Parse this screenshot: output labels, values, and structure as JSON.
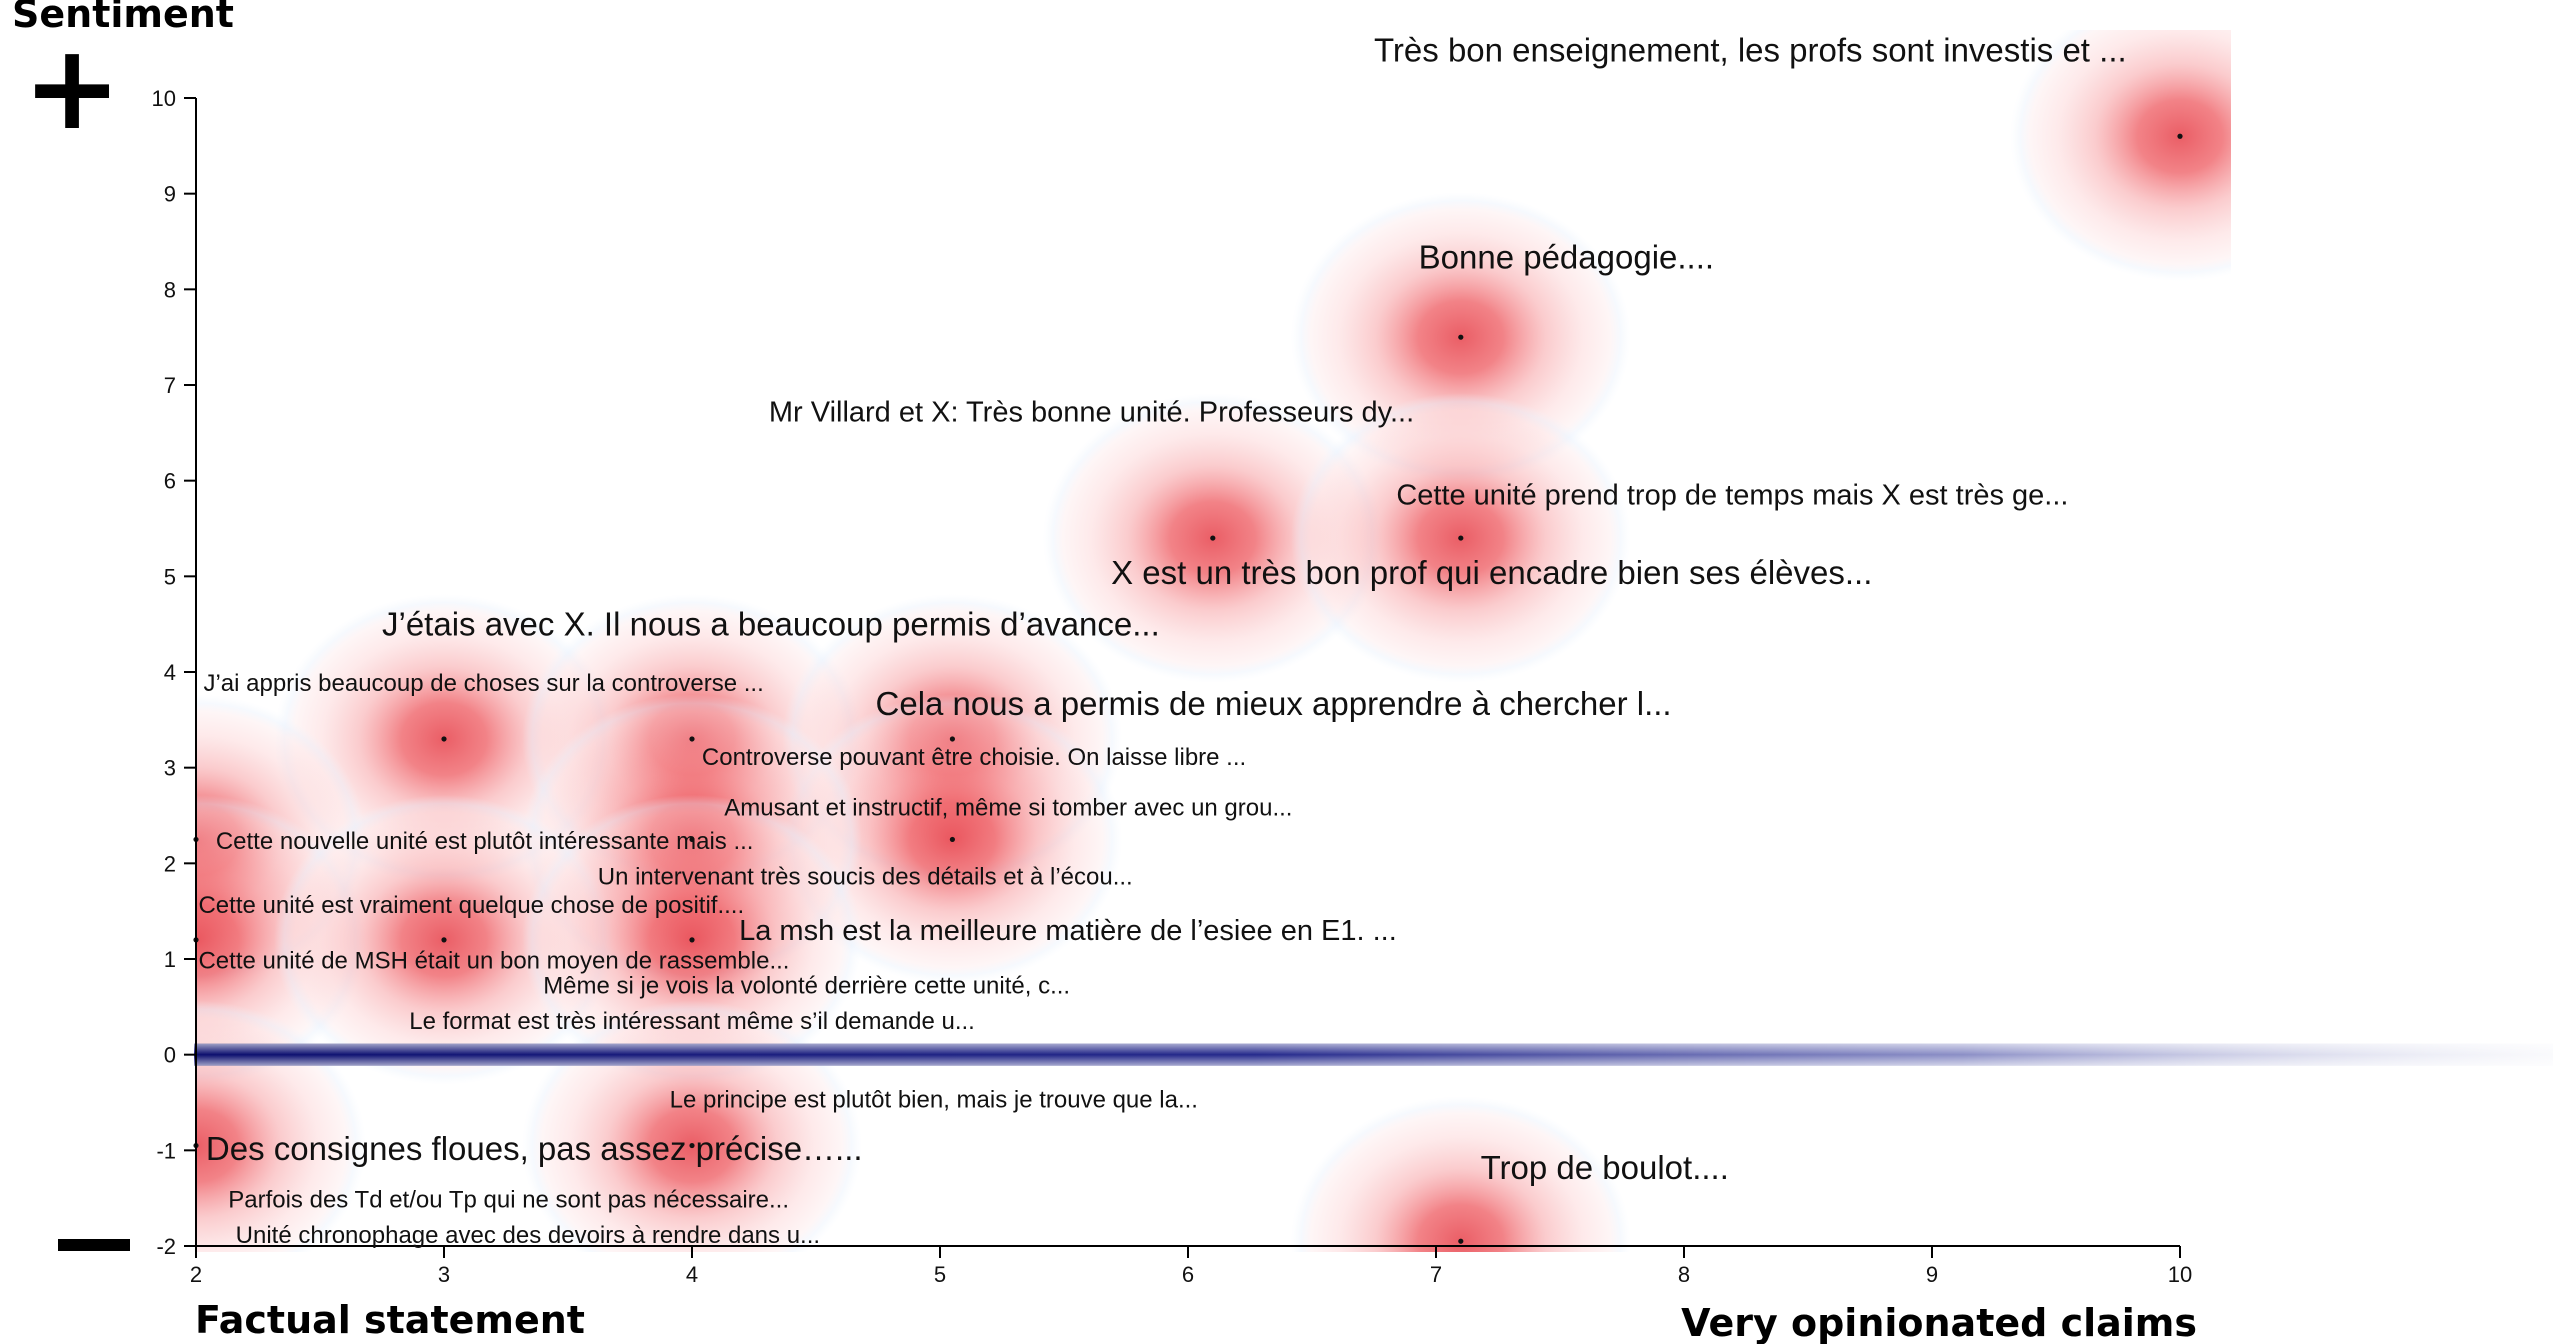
{
  "chart_data": {
    "type": "scatter",
    "title": "",
    "ylabel": "Sentiment",
    "xlabel_left": "Factual statement",
    "xlabel_right": "Very opinionated claims",
    "xlim": [
      2,
      10
    ],
    "ylim": [
      -2,
      10
    ],
    "x_ticks": [
      "2",
      "3",
      "4",
      "5",
      "6",
      "7",
      "8",
      "9",
      "10"
    ],
    "y_ticks": [
      "-2",
      "-1",
      "0",
      "1",
      "2",
      "3",
      "4",
      "5",
      "6",
      "7",
      "8",
      "9",
      "10"
    ],
    "plus_symbol": "+",
    "minus_symbol": "—",
    "grid": false,
    "colors": {
      "density": "#e8212b",
      "neutral_band": "#0c0f6e",
      "halo": "#dbe9fb"
    },
    "points": [
      {
        "x": 10.0,
        "y": 9.6
      },
      {
        "x": 7.1,
        "y": 7.5
      },
      {
        "x": 6.1,
        "y": 5.4
      },
      {
        "x": 7.1,
        "y": 5.4
      },
      {
        "x": 3.0,
        "y": 3.3
      },
      {
        "x": 4.0,
        "y": 3.3
      },
      {
        "x": 5.05,
        "y": 3.3
      },
      {
        "x": 5.05,
        "y": 2.25
      },
      {
        "x": 2.0,
        "y": 2.25
      },
      {
        "x": 4.0,
        "y": 2.25
      },
      {
        "x": 2.0,
        "y": 1.2
      },
      {
        "x": 3.0,
        "y": 1.2
      },
      {
        "x": 4.0,
        "y": 1.2
      },
      {
        "x": 4.0,
        "y": -0.95
      },
      {
        "x": 2.0,
        "y": -0.95
      },
      {
        "x": 7.1,
        "y": -1.95
      }
    ],
    "annotations": [
      {
        "text": "Très bon enseignement, les profs sont investis et ...",
        "x": 6.75,
        "y": 10.38,
        "size": "large"
      },
      {
        "text": "Bonne pédagogie....",
        "x": 6.93,
        "y": 8.22,
        "size": "large"
      },
      {
        "text": "Mr Villard et X: Très bonne unité. Professeurs dy...",
        "x": 4.31,
        "y": 6.62,
        "size": "medium"
      },
      {
        "text": "Cette unité prend trop de temps mais X est très ge...",
        "x": 6.84,
        "y": 5.75,
        "size": "medium"
      },
      {
        "text": "X est un très bon prof qui encadre bien ses élèves...",
        "x": 5.69,
        "y": 4.92,
        "size": "large"
      },
      {
        "text": "J’étais avec X. Il nous a beaucoup permis d’avance...",
        "x": 2.75,
        "y": 4.38,
        "size": "large"
      },
      {
        "text": "J’ai appris beaucoup de choses sur la controverse ...",
        "x": 2.03,
        "y": 3.8,
        "size": "small"
      },
      {
        "text": "Cela nous a permis de mieux apprendre à chercher l...",
        "x": 4.74,
        "y": 3.55,
        "size": "large"
      },
      {
        "text": "Controverse pouvant être choisie. On laisse libre ...",
        "x": 4.04,
        "y": 3.03,
        "size": "small"
      },
      {
        "text": "Amusant et instructif, même si tomber avec un grou...",
        "x": 4.13,
        "y": 2.5,
        "size": "small"
      },
      {
        "text": "Cette nouvelle unité est plutôt intéressante mais ...",
        "x": 2.08,
        "y": 2.15,
        "size": "small"
      },
      {
        "text": "Un intervenant très soucis des détails et à l’écou...",
        "x": 3.62,
        "y": 1.78,
        "size": "small"
      },
      {
        "text": "Cette unité est vraiment quelque chose de positif....",
        "x": 2.01,
        "y": 1.48,
        "size": "small"
      },
      {
        "text": "La msh est la meilleure matière de l’esiee en E1. ...",
        "x": 4.19,
        "y": 1.2,
        "size": "medium"
      },
      {
        "text": "Cette unité de MSH était un bon moyen de rassemble...",
        "x": 2.01,
        "y": 0.9,
        "size": "small"
      },
      {
        "text": "Même si je vois la volonté derrière cette unité, c...",
        "x": 3.4,
        "y": 0.64,
        "size": "small"
      },
      {
        "text": "Le format est très intéressant même s’il demande u...",
        "x": 2.86,
        "y": 0.27,
        "size": "small"
      },
      {
        "text": "Le principe est plutôt bien, mais je trouve que la...",
        "x": 3.91,
        "y": -0.55,
        "size": "small"
      },
      {
        "text": "Des consignes floues, pas assez précise…...",
        "x": 2.04,
        "y": -1.1,
        "size": "large"
      },
      {
        "text": "Trop de boulot....",
        "x": 7.18,
        "y": -1.3,
        "size": "large"
      },
      {
        "text": "Parfois des Td et/ou Tp qui ne sont pas nécessaire...",
        "x": 2.13,
        "y": -1.6,
        "size": "small"
      },
      {
        "text": "Unité chronophage avec des devoirs à rendre dans u...",
        "x": 2.16,
        "y": -1.97,
        "size": "small"
      }
    ]
  }
}
